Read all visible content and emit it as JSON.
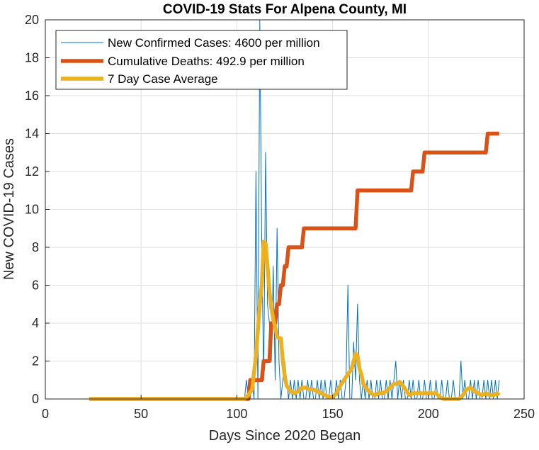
{
  "chart_data": {
    "type": "line",
    "title": "COVID-19 Stats For Alpena County, MI",
    "xlabel": "Days Since 2020 Began",
    "ylabel": "New COVID-19 Cases",
    "xlim": [
      0,
      250
    ],
    "ylim": [
      0,
      20
    ],
    "xticks": [
      0,
      50,
      100,
      150,
      200,
      250
    ],
    "yticks": [
      0,
      2,
      4,
      6,
      8,
      10,
      12,
      14,
      16,
      18,
      20
    ],
    "grid": true,
    "legend_position": "top-left",
    "series": [
      {
        "name": "New Confirmed Cases: 4600 per million",
        "color": "#0072BD",
        "line_width": "thin",
        "x": [
          23,
          100,
          103,
          104,
          105,
          106,
          107,
          108,
          109,
          110,
          111,
          112,
          113,
          114,
          115,
          116,
          117,
          118,
          119,
          120,
          121,
          122,
          123,
          124,
          125,
          126,
          127,
          128,
          129,
          130,
          131,
          132,
          133,
          134,
          135,
          136,
          137,
          138,
          139,
          140,
          141,
          142,
          143,
          144,
          145,
          146,
          147,
          148,
          149,
          150,
          151,
          152,
          153,
          154,
          155,
          156,
          157,
          158,
          159,
          160,
          161,
          162,
          163,
          164,
          165,
          166,
          167,
          168,
          169,
          170,
          171,
          172,
          173,
          174,
          175,
          176,
          177,
          178,
          179,
          180,
          181,
          182,
          183,
          184,
          185,
          186,
          187,
          188,
          189,
          190,
          191,
          192,
          193,
          194,
          195,
          196,
          197,
          198,
          199,
          200,
          201,
          202,
          203,
          204,
          205,
          206,
          207,
          208,
          209,
          210,
          211,
          212,
          213,
          214,
          215,
          216,
          217,
          218,
          219,
          220,
          221,
          222,
          223,
          224,
          225,
          226,
          227,
          228,
          229,
          230,
          231,
          232,
          233,
          234,
          235,
          236,
          237
        ],
        "values": [
          0,
          0,
          0,
          0,
          1,
          0,
          0,
          1,
          0,
          12,
          0,
          20,
          8,
          1,
          13,
          5,
          4,
          2,
          7,
          1,
          9,
          2,
          0,
          1,
          2,
          1,
          0,
          1,
          0,
          1,
          0,
          1,
          0,
          1,
          0,
          0,
          1,
          0,
          1,
          0,
          0,
          1,
          0,
          1,
          0,
          1,
          0,
          0,
          1,
          0,
          0,
          1,
          0,
          1,
          0,
          0,
          1,
          6,
          0,
          0,
          3,
          1,
          5,
          1,
          0,
          1,
          0,
          1,
          0,
          1,
          0,
          0,
          1,
          0,
          1,
          0,
          0,
          1,
          0,
          1,
          0,
          1,
          2,
          0,
          1,
          0,
          1,
          0,
          0,
          1,
          0,
          1,
          0,
          0,
          1,
          0,
          0,
          1,
          0,
          0,
          1,
          0,
          0,
          1,
          0,
          0,
          1,
          0,
          0,
          1,
          0,
          0,
          1,
          0,
          0,
          0,
          2,
          0,
          1,
          0,
          0,
          1,
          0,
          1,
          0,
          1,
          0,
          0,
          1,
          0,
          1,
          0,
          1,
          0,
          1,
          0,
          1
        ]
      },
      {
        "name": "Cumulative Deaths: 492.9 per million",
        "color": "#D95319",
        "line_width": "thick",
        "x": [
          23,
          106,
          107,
          113,
          114,
          117,
          118,
          120,
          121,
          122,
          123,
          124,
          125,
          126,
          127,
          128,
          129,
          134,
          135,
          162,
          163,
          191,
          192,
          197,
          198,
          230,
          231,
          237
        ],
        "values": [
          0,
          0,
          1,
          1,
          2,
          2,
          4,
          4,
          5,
          5,
          6,
          6,
          7,
          7,
          8,
          8,
          8,
          8,
          9,
          9,
          11,
          11,
          12,
          12,
          13,
          13,
          14,
          14
        ]
      },
      {
        "name": "7 Day Case Average",
        "color": "#EDB120",
        "line_width": "thick",
        "x": [
          23,
          104,
          106,
          108,
          110,
          112,
          113,
          114,
          115,
          116,
          117,
          118,
          119,
          120,
          121,
          122,
          123,
          124,
          125,
          126,
          128,
          130,
          132,
          134,
          136,
          138,
          140,
          142,
          144,
          146,
          148,
          150,
          152,
          154,
          156,
          158,
          160,
          161,
          162,
          163,
          164,
          165,
          166,
          168,
          170,
          172,
          174,
          176,
          178,
          180,
          182,
          184,
          185,
          186,
          188,
          190,
          192,
          194,
          196,
          198,
          200,
          202,
          204,
          206,
          208,
          210,
          212,
          214,
          216,
          218,
          220,
          222,
          224,
          226,
          228,
          230,
          232,
          234,
          236,
          237
        ],
        "values": [
          0,
          0,
          0.2,
          0.5,
          2.3,
          5.0,
          6.0,
          8.3,
          8.2,
          7.0,
          5.7,
          4.8,
          4.2,
          3.8,
          3.3,
          3.2,
          3.2,
          2.0,
          1.2,
          0.7,
          0.4,
          0.3,
          0.4,
          0.6,
          0.6,
          0.5,
          0.5,
          0.4,
          0.3,
          0.2,
          0.1,
          0.1,
          0.3,
          0.7,
          1.0,
          1.3,
          1.6,
          2.0,
          2.4,
          2.3,
          1.6,
          1.3,
          0.8,
          0.5,
          0.3,
          0.2,
          0.3,
          0.3,
          0.4,
          0.6,
          0.8,
          0.8,
          0.9,
          0.8,
          0.5,
          0.2,
          0.3,
          0.3,
          0.3,
          0.3,
          0.3,
          0.3,
          0.3,
          0.1,
          0,
          0,
          0,
          0,
          0,
          0.2,
          0.5,
          0.6,
          0.4,
          0.3,
          0.2,
          0.3,
          0.2,
          0.2,
          0.3,
          0.2
        ]
      }
    ]
  }
}
